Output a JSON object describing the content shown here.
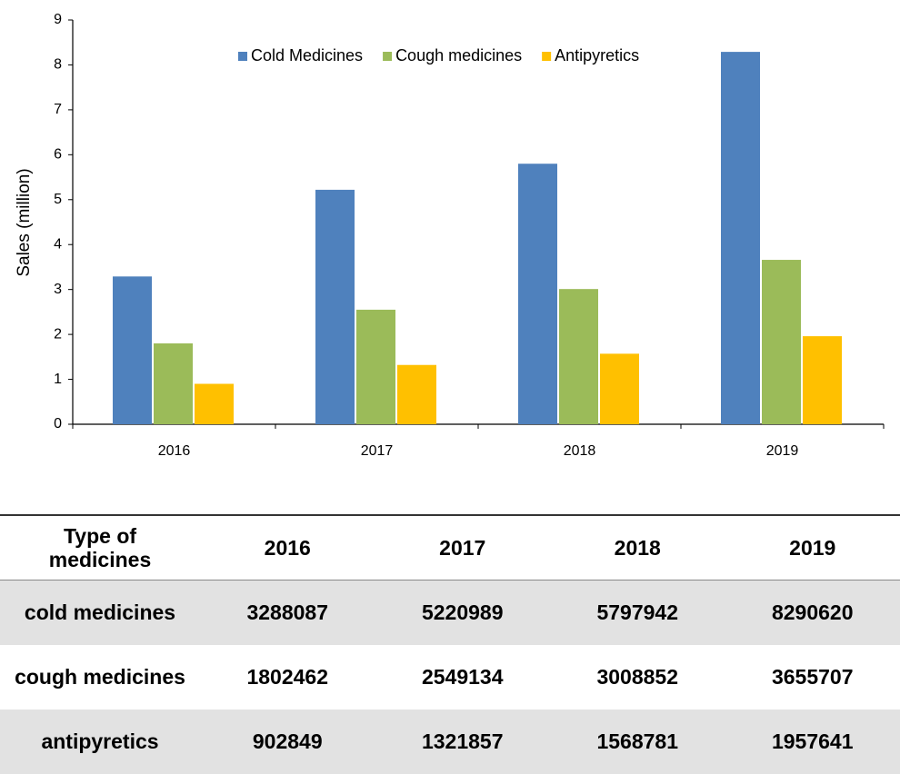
{
  "chart_data": {
    "type": "bar",
    "y_label": "Sales (million)",
    "categories": [
      "2016",
      "2017",
      "2018",
      "2019"
    ],
    "series": [
      {
        "name": "Cold Medicines",
        "color": "#4f81bd",
        "values": [
          3.29,
          5.22,
          5.8,
          8.29
        ]
      },
      {
        "name": "Cough medicines",
        "color": "#9bbb59",
        "values": [
          1.8,
          2.55,
          3.01,
          3.66
        ]
      },
      {
        "name": "Antipyretics",
        "color": "#ffc000",
        "values": [
          0.9,
          1.32,
          1.57,
          1.96
        ]
      }
    ],
    "ylim": [
      0,
      9
    ],
    "yticks": [
      0,
      1,
      2,
      3,
      4,
      5,
      6,
      7,
      8,
      9
    ],
    "grid": false,
    "legend": "top"
  },
  "table": {
    "header": [
      "Type of medicines",
      "2016",
      "2017",
      "2018",
      "2019"
    ],
    "rows": [
      [
        "cold medicines",
        "3288087",
        "5220989",
        "5797942",
        "8290620"
      ],
      [
        "cough medicines",
        "1802462",
        "2549134",
        "3008852",
        "3655707"
      ],
      [
        "antipyretics",
        "902849",
        "1321857",
        "1568781",
        "1957641"
      ]
    ]
  }
}
